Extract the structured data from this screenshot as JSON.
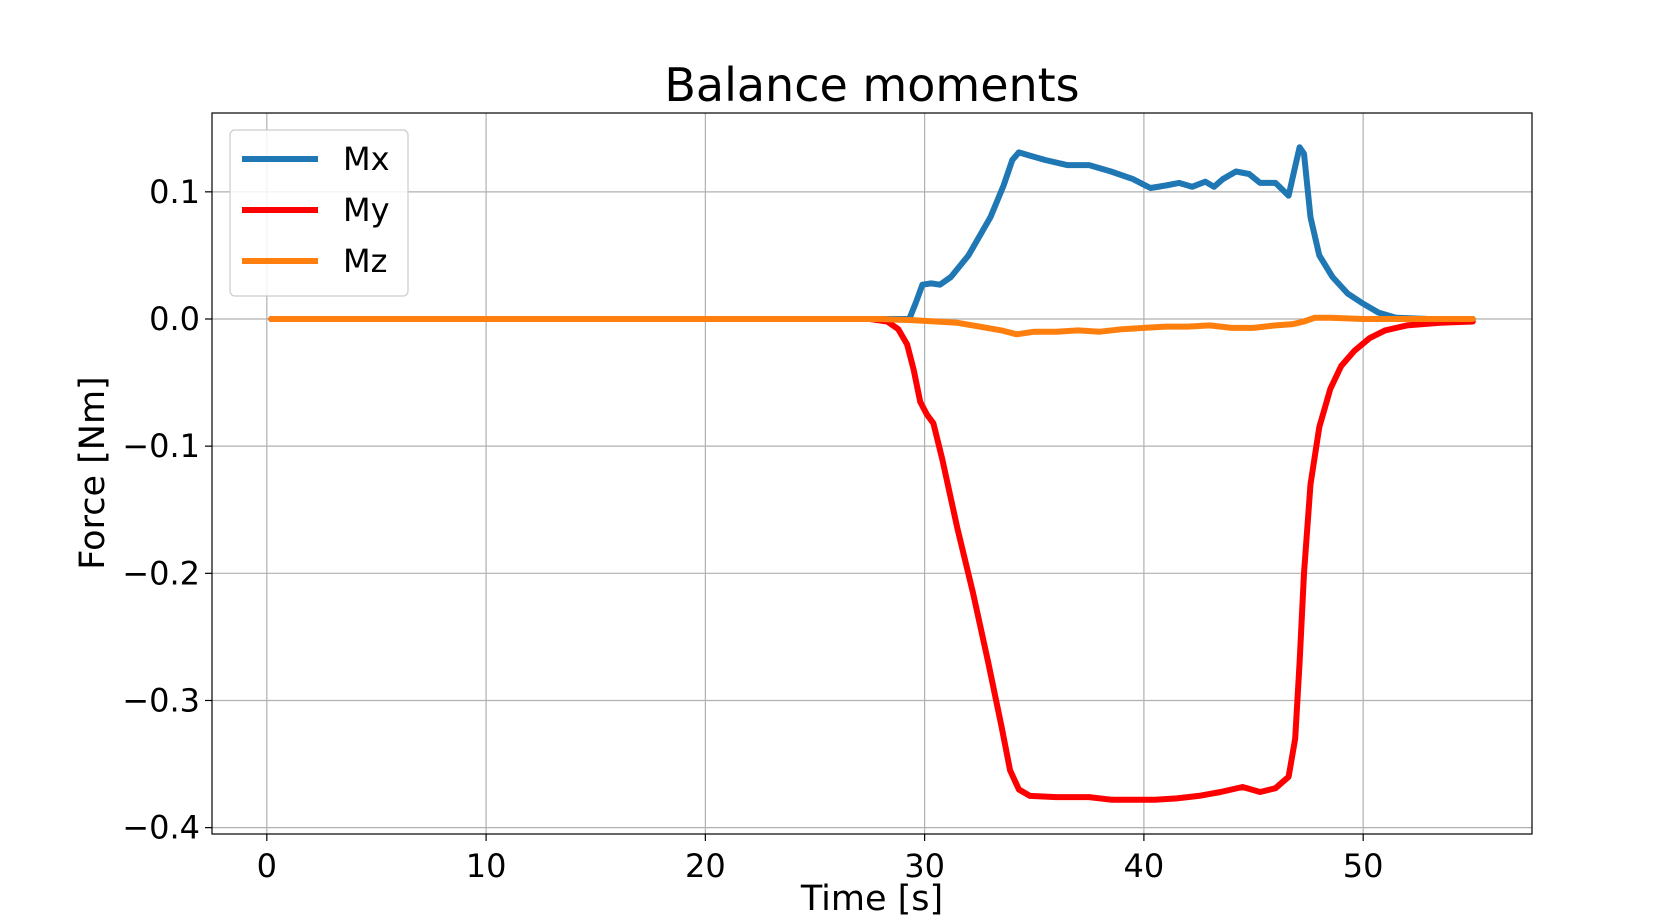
{
  "chart_data": {
    "type": "line",
    "title": "Balance moments",
    "xlabel": "Time [s]",
    "ylabel": "Force [Nm]",
    "xlim": [
      -2.5,
      57.7
    ],
    "ylim": [
      -0.405,
      0.162
    ],
    "x_ticks": [
      0,
      10,
      20,
      30,
      40,
      50
    ],
    "x_tick_labels": [
      "0",
      "10",
      "20",
      "30",
      "40",
      "50"
    ],
    "y_ticks": [
      0.1,
      0.0,
      -0.1,
      -0.2,
      -0.3,
      -0.4
    ],
    "y_tick_labels": [
      "0.1",
      "0.0",
      "−0.1",
      "−0.2",
      "−0.3",
      "−0.4"
    ],
    "grid": true,
    "legend_position": "top-left",
    "series": [
      {
        "name": "Mx",
        "color": "#1f77b4",
        "points": [
          [
            0.2,
            0.0
          ],
          [
            10,
            0.0
          ],
          [
            20,
            0.0
          ],
          [
            28,
            0.0
          ],
          [
            29.3,
            0.0
          ],
          [
            29.6,
            0.013
          ],
          [
            29.9,
            0.027
          ],
          [
            30.3,
            0.028
          ],
          [
            30.7,
            0.027
          ],
          [
            31.2,
            0.033
          ],
          [
            32,
            0.05
          ],
          [
            33,
            0.08
          ],
          [
            33.6,
            0.105
          ],
          [
            34.0,
            0.125
          ],
          [
            34.3,
            0.131
          ],
          [
            34.7,
            0.129
          ],
          [
            35.5,
            0.125
          ],
          [
            36.5,
            0.121
          ],
          [
            37.5,
            0.121
          ],
          [
            38.5,
            0.116
          ],
          [
            39.5,
            0.11
          ],
          [
            40.3,
            0.103
          ],
          [
            41.0,
            0.105
          ],
          [
            41.6,
            0.107
          ],
          [
            42.2,
            0.104
          ],
          [
            42.8,
            0.108
          ],
          [
            43.2,
            0.104
          ],
          [
            43.6,
            0.11
          ],
          [
            44.2,
            0.116
          ],
          [
            44.8,
            0.114
          ],
          [
            45.3,
            0.107
          ],
          [
            46.0,
            0.107
          ],
          [
            46.6,
            0.097
          ],
          [
            46.9,
            0.12
          ],
          [
            47.1,
            0.135
          ],
          [
            47.3,
            0.13
          ],
          [
            47.6,
            0.08
          ],
          [
            48.0,
            0.05
          ],
          [
            48.6,
            0.033
          ],
          [
            49.3,
            0.02
          ],
          [
            50.0,
            0.012
          ],
          [
            50.7,
            0.005
          ],
          [
            51.5,
            0.001
          ],
          [
            53,
            0.0
          ],
          [
            55,
            0.0
          ]
        ]
      },
      {
        "name": "My",
        "color": "#ff0000",
        "points": [
          [
            0.2,
            0.0
          ],
          [
            10,
            0.0
          ],
          [
            20,
            0.0
          ],
          [
            27.5,
            0.0
          ],
          [
            28.3,
            -0.002
          ],
          [
            28.8,
            -0.008
          ],
          [
            29.2,
            -0.02
          ],
          [
            29.5,
            -0.04
          ],
          [
            29.8,
            -0.065
          ],
          [
            30.1,
            -0.075
          ],
          [
            30.4,
            -0.082
          ],
          [
            30.8,
            -0.11
          ],
          [
            31.5,
            -0.165
          ],
          [
            32.2,
            -0.215
          ],
          [
            32.9,
            -0.27
          ],
          [
            33.5,
            -0.32
          ],
          [
            33.9,
            -0.355
          ],
          [
            34.3,
            -0.37
          ],
          [
            34.8,
            -0.375
          ],
          [
            36,
            -0.376
          ],
          [
            37.5,
            -0.376
          ],
          [
            38.5,
            -0.378
          ],
          [
            39.5,
            -0.378
          ],
          [
            40.5,
            -0.378
          ],
          [
            41.5,
            -0.377
          ],
          [
            42.5,
            -0.375
          ],
          [
            43.5,
            -0.372
          ],
          [
            44.5,
            -0.368
          ],
          [
            45.3,
            -0.372
          ],
          [
            46.0,
            -0.369
          ],
          [
            46.6,
            -0.36
          ],
          [
            46.9,
            -0.33
          ],
          [
            47.1,
            -0.27
          ],
          [
            47.3,
            -0.2
          ],
          [
            47.6,
            -0.13
          ],
          [
            48.0,
            -0.085
          ],
          [
            48.5,
            -0.055
          ],
          [
            49.0,
            -0.037
          ],
          [
            49.6,
            -0.025
          ],
          [
            50.3,
            -0.015
          ],
          [
            51.0,
            -0.009
          ],
          [
            52.0,
            -0.005
          ],
          [
            53.5,
            -0.003
          ],
          [
            55,
            -0.002
          ]
        ]
      },
      {
        "name": "Mz",
        "color": "#ff7f0e",
        "points": [
          [
            0.2,
            0.0
          ],
          [
            10,
            0.0
          ],
          [
            20,
            0.0
          ],
          [
            28,
            0.0
          ],
          [
            29.5,
            -0.001
          ],
          [
            30.5,
            -0.002
          ],
          [
            31.5,
            -0.003
          ],
          [
            32.5,
            -0.006
          ],
          [
            33.5,
            -0.009
          ],
          [
            34.2,
            -0.012
          ],
          [
            35.0,
            -0.01
          ],
          [
            36.0,
            -0.01
          ],
          [
            37.0,
            -0.009
          ],
          [
            38.0,
            -0.01
          ],
          [
            39.0,
            -0.008
          ],
          [
            40.0,
            -0.007
          ],
          [
            41.0,
            -0.006
          ],
          [
            42.0,
            -0.006
          ],
          [
            43.0,
            -0.005
          ],
          [
            44.0,
            -0.007
          ],
          [
            45.0,
            -0.007
          ],
          [
            46.0,
            -0.005
          ],
          [
            46.8,
            -0.004
          ],
          [
            47.3,
            -0.002
          ],
          [
            47.8,
            0.001
          ],
          [
            48.5,
            0.001
          ],
          [
            50,
            0.0
          ],
          [
            52,
            0.0
          ],
          [
            55,
            0.0
          ]
        ]
      }
    ]
  }
}
